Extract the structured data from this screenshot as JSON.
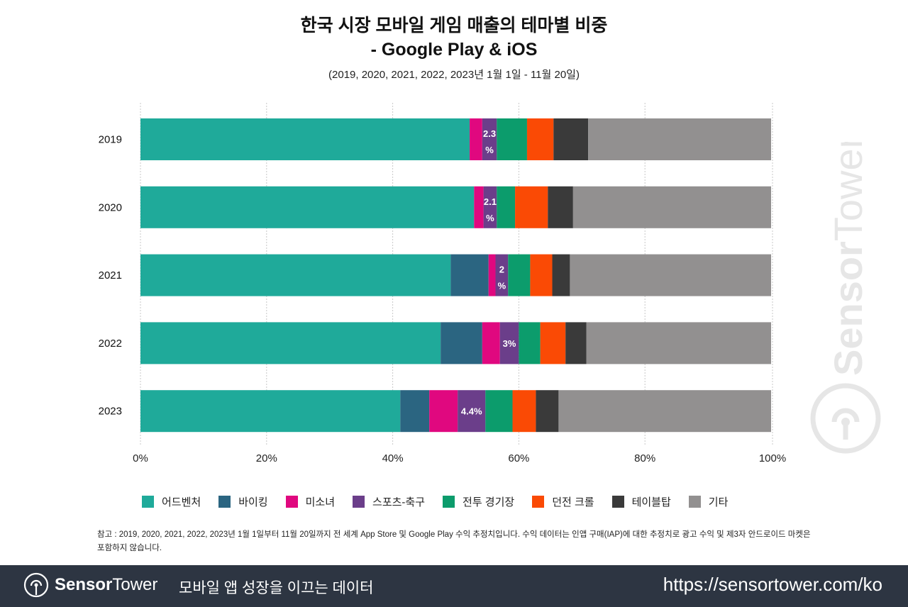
{
  "header": {
    "title_line1": "한국 시장 모바일 게임 매출의 테마별 비중",
    "title_line2": "- Google Play & iOS",
    "subtitle": "(2019, 2020, 2021, 2022, 2023년 1월 1일 - 11월 20일)"
  },
  "chart_data": {
    "type": "bar",
    "orientation": "horizontal",
    "stacked": true,
    "title": "한국 시장 모바일 게임 매출의 테마별 비중 - Google Play & iOS",
    "subtitle": "(2019, 2020, 2021, 2022, 2023년 1월 1일 - 11월 20일)",
    "xlabel": "",
    "ylabel": "",
    "xlim": [
      0,
      100
    ],
    "x_ticks": [
      "0%",
      "20%",
      "40%",
      "60%",
      "80%",
      "100%"
    ],
    "x_tick_values": [
      0,
      20,
      40,
      60,
      80,
      100
    ],
    "grid": true,
    "legend_position": "bottom",
    "categories": [
      "2019",
      "2020",
      "2021",
      "2022",
      "2023"
    ],
    "series": [
      {
        "name": "어드벤처",
        "color": "#1faa9a",
        "values": [
          52.2,
          52.9,
          49.2,
          47.6,
          41.2
        ]
      },
      {
        "name": "바이킹",
        "color": "#2b6581",
        "values": [
          0,
          0,
          6.0,
          6.6,
          4.6
        ]
      },
      {
        "name": "미소녀",
        "color": "#e0087f",
        "values": [
          2.0,
          1.5,
          1.1,
          2.8,
          4.5
        ]
      },
      {
        "name": "스포츠-축구",
        "color": "#6b3e8a",
        "values": [
          2.3,
          2.1,
          2.0,
          3.0,
          4.4
        ]
      },
      {
        "name": "전투 경기장",
        "color": "#0c9c6c",
        "values": [
          4.8,
          2.9,
          3.5,
          3.4,
          4.3
        ]
      },
      {
        "name": "던전 크롤",
        "color": "#fa4a05",
        "values": [
          4.2,
          5.2,
          3.5,
          4.0,
          3.7
        ]
      },
      {
        "name": "테이블탑",
        "color": "#3a3a3a",
        "values": [
          5.5,
          4.0,
          2.8,
          3.3,
          3.6
        ]
      },
      {
        "name": "기타",
        "color": "#929090",
        "values": [
          29.0,
          31.4,
          31.9,
          29.3,
          33.7
        ]
      }
    ],
    "annotations": [
      {
        "category": "2019",
        "series": "스포츠-축구",
        "text_line1": "2.3",
        "text_line2": "%"
      },
      {
        "category": "2020",
        "series": "스포츠-축구",
        "text_line1": "2.1",
        "text_line2": "%"
      },
      {
        "category": "2021",
        "series": "스포츠-축구",
        "text_line1": "2",
        "text_line2": "%"
      },
      {
        "category": "2022",
        "series": "스포츠-축구",
        "text_line1": "3%",
        "text_line2": ""
      },
      {
        "category": "2023",
        "series": "스포츠-축구",
        "text_line1": "4.4%",
        "text_line2": ""
      }
    ]
  },
  "note": "참고 : 2019, 2020, 2021, 2022, 2023년 1월 1일부터 11월 20일까지 전 세계 App Store 및 Google Play 수익 추정치입니다. 수익 데이터는 인앱 구매(IAP)에 대한 추정치로 광고 수익 및 제3자 안드로이드 마켓은 포함하지 않습니다.",
  "footer": {
    "brand_bold": "Sensor",
    "brand_light": "Tower",
    "tagline": "모바일 앱 성장을 이끄는 데이터",
    "url": "https://sensortower.com/ko"
  },
  "watermark": "SensorTower",
  "colors": {
    "footer_bg": "#2d3542",
    "watermark": "#e6e6e6"
  }
}
